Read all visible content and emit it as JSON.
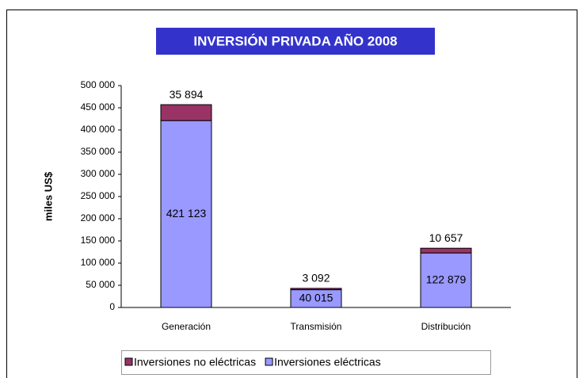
{
  "chart_data": {
    "type": "stacked_bar",
    "title": "INVERSIÓN PRIVADA AÑO 2008",
    "y_label": "miles US$",
    "categories": [
      "Generación",
      "Transmisión",
      "Distribución"
    ],
    "series": [
      {
        "name": "Inversiones eléctricas",
        "color": "#9999ff",
        "values": [
          421123,
          40015,
          122879
        ],
        "value_labels": [
          "421 123",
          "40 015",
          "122 879"
        ]
      },
      {
        "name": "Inversiones no eléctricas",
        "color": "#993366",
        "values": [
          35894,
          3092,
          10657
        ],
        "value_labels": [
          "35 894",
          "3 092",
          "10 657"
        ]
      }
    ],
    "ylim": [
      0,
      500000
    ],
    "yticks": [
      {
        "value": 0,
        "label": "0"
      },
      {
        "value": 50000,
        "label": "50 000"
      },
      {
        "value": 100000,
        "label": "100 000"
      },
      {
        "value": 150000,
        "label": "150 000"
      },
      {
        "value": 200000,
        "label": "200 000"
      },
      {
        "value": 250000,
        "label": "250 000"
      },
      {
        "value": 300000,
        "label": "300 000"
      },
      {
        "value": 350000,
        "label": "350 000"
      },
      {
        "value": 400000,
        "label": "400 000"
      },
      {
        "value": 450000,
        "label": "450 000"
      },
      {
        "value": 500000,
        "label": "500 000"
      }
    ],
    "legend": "bottom",
    "grid": false
  }
}
